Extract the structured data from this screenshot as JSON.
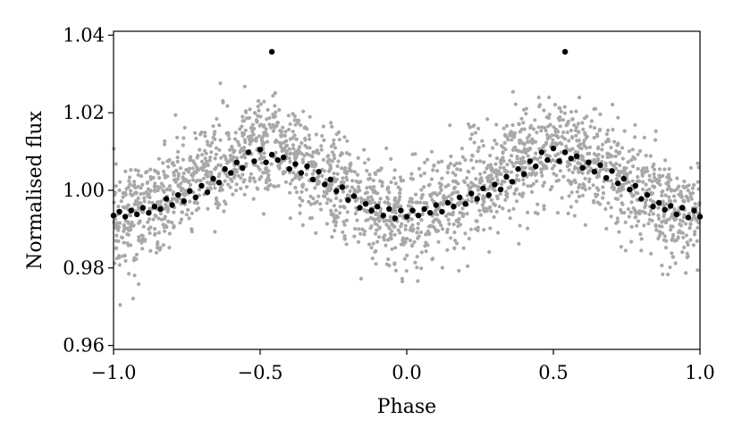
{
  "chart_data": {
    "type": "scatter",
    "title": "",
    "xlabel": "Phase",
    "ylabel": "Normalised flux",
    "xlim": [
      -1.0,
      1.0
    ],
    "ylim": [
      0.959,
      1.041
    ],
    "xticks": [
      -1.0,
      -0.5,
      0.0,
      0.5,
      1.0
    ],
    "xtick_labels": [
      "−1.0",
      "−0.5",
      "0.0",
      "0.5",
      "1.0"
    ],
    "yticks": [
      0.96,
      0.98,
      1.0,
      1.02,
      1.04
    ],
    "ytick_labels": [
      "0.96",
      "0.98",
      "1.00",
      "1.02",
      "1.04"
    ],
    "grid": false,
    "legend": "none",
    "colors": {
      "raw": "#a8a8a8",
      "binned": "#000000"
    },
    "series": [
      {
        "role": "raw",
        "model": {
          "mean": 1.0015,
          "amplitude": 0.0085,
          "peak_phase": -0.5,
          "period": 1.0,
          "scatter_sd": 0.0065,
          "n_points": 2400
        }
      },
      {
        "role": "binned",
        "points": [
          [
            -1.0,
            0.9935
          ],
          [
            -0.98,
            0.9945
          ],
          [
            -0.96,
            0.9932
          ],
          [
            -0.94,
            0.9948
          ],
          [
            -0.92,
            0.9938
          ],
          [
            -0.9,
            0.9955
          ],
          [
            -0.88,
            0.9942
          ],
          [
            -0.86,
            0.9958
          ],
          [
            -0.84,
            0.9952
          ],
          [
            -0.82,
            0.9978
          ],
          [
            -0.8,
            0.9962
          ],
          [
            -0.78,
            0.9988
          ],
          [
            -0.76,
            0.9972
          ],
          [
            -0.74,
            0.9998
          ],
          [
            -0.72,
            0.9982
          ],
          [
            -0.7,
            1.0012
          ],
          [
            -0.68,
            0.9995
          ],
          [
            -0.66,
            1.003
          ],
          [
            -0.64,
            1.002
          ],
          [
            -0.62,
            1.0055
          ],
          [
            -0.6,
            1.0045
          ],
          [
            -0.58,
            1.0072
          ],
          [
            -0.56,
            1.0058
          ],
          [
            -0.54,
            1.0098
          ],
          [
            -0.52,
            1.0075
          ],
          [
            -0.5,
            1.0105
          ],
          [
            -0.48,
            1.0072
          ],
          [
            -0.46,
            1.0092
          ],
          [
            -0.44,
            1.0078
          ],
          [
            -0.42,
            1.0085
          ],
          [
            -0.4,
            1.0055
          ],
          [
            -0.38,
            1.0068
          ],
          [
            -0.36,
            1.0045
          ],
          [
            -0.34,
            1.0062
          ],
          [
            -0.32,
            1.0028
          ],
          [
            -0.3,
            1.0048
          ],
          [
            -0.28,
            1.0015
          ],
          [
            -0.26,
            1.0028
          ],
          [
            -0.24,
            0.9998
          ],
          [
            -0.22,
            1.0008
          ],
          [
            -0.2,
            0.9975
          ],
          [
            -0.18,
            0.9985
          ],
          [
            -0.16,
            0.9955
          ],
          [
            -0.14,
            0.9965
          ],
          [
            -0.12,
            0.9948
          ],
          [
            -0.1,
            0.9958
          ],
          [
            -0.08,
            0.9935
          ],
          [
            -0.06,
            0.9952
          ],
          [
            -0.04,
            0.9928
          ],
          [
            -0.02,
            0.9948
          ],
          [
            0.0,
            0.9932
          ],
          [
            0.02,
            0.9948
          ],
          [
            0.04,
            0.9935
          ],
          [
            0.06,
            0.9952
          ],
          [
            0.08,
            0.9942
          ],
          [
            0.1,
            0.9962
          ],
          [
            0.12,
            0.9945
          ],
          [
            0.14,
            0.9968
          ],
          [
            0.16,
            0.9958
          ],
          [
            0.18,
            0.9982
          ],
          [
            0.2,
            0.9965
          ],
          [
            0.22,
            0.9992
          ],
          [
            0.24,
            0.9978
          ],
          [
            0.26,
            1.0005
          ],
          [
            0.28,
            0.9988
          ],
          [
            0.3,
            1.0015
          ],
          [
            0.32,
            1.0002
          ],
          [
            0.34,
            1.0035
          ],
          [
            0.36,
            1.0022
          ],
          [
            0.38,
            1.0055
          ],
          [
            0.4,
            1.0042
          ],
          [
            0.42,
            1.0075
          ],
          [
            0.44,
            1.0062
          ],
          [
            0.46,
            1.0098
          ],
          [
            0.48,
            1.0078
          ],
          [
            0.5,
            1.0108
          ],
          [
            0.52,
            1.0075
          ],
          [
            0.54,
            1.0098
          ],
          [
            0.56,
            1.0082
          ],
          [
            0.58,
            1.0088
          ],
          [
            0.6,
            1.0058
          ],
          [
            0.62,
            1.0072
          ],
          [
            0.64,
            1.0048
          ],
          [
            0.66,
            1.0065
          ],
          [
            0.68,
            1.0032
          ],
          [
            0.7,
            1.005
          ],
          [
            0.72,
            1.0018
          ],
          [
            0.74,
            1.003
          ],
          [
            0.76,
            1.0002
          ],
          [
            0.78,
            1.0012
          ],
          [
            0.8,
            0.9978
          ],
          [
            0.82,
            0.9988
          ],
          [
            0.84,
            0.9958
          ],
          [
            0.86,
            0.9968
          ],
          [
            0.88,
            0.995
          ],
          [
            0.9,
            0.996
          ],
          [
            0.92,
            0.9938
          ],
          [
            0.94,
            0.9955
          ],
          [
            0.96,
            0.993
          ],
          [
            0.98,
            0.9948
          ],
          [
            1.0,
            0.9932
          ],
          [
            -0.46,
            1.0357
          ],
          [
            0.54,
            1.0357
          ]
        ]
      }
    ]
  }
}
